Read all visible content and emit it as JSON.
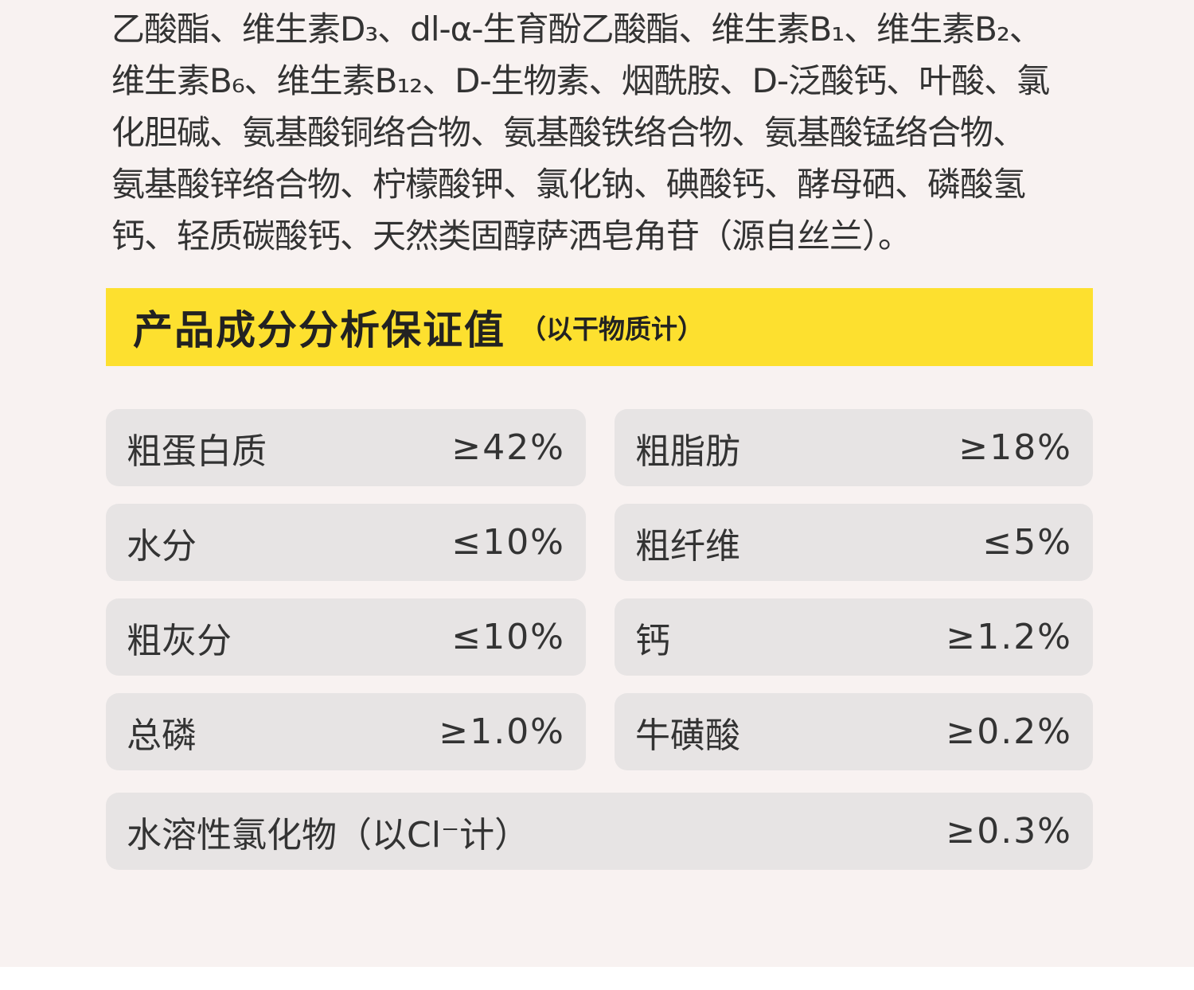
{
  "ingredients": {
    "lines": [
      "乙酸酯、维生素D₃、dl-α-生育酚乙酸酯、维生素B₁、维生素B₂、",
      "维生素B₆、维生素B₁₂、D-生物素、烟酰胺、D-泛酸钙、叶酸、氯",
      "化胆碱、氨基酸铜络合物、氨基酸铁络合物、氨基酸锰络合物、",
      "氨基酸锌络合物、柠檬酸钾、氯化钠、碘酸钙、酵母硒、磷酸氢",
      "钙、轻质碳酸钙、天然类固醇萨洒皂角苷（源自丝兰）。"
    ]
  },
  "header": {
    "title": "产品成分分析保证值",
    "subtitle": "（以干物质计）"
  },
  "table": {
    "rows": [
      {
        "name": "粗蛋白质",
        "value": "≥42%"
      },
      {
        "name": "粗脂肪",
        "value": "≥18%"
      },
      {
        "name": "水分",
        "value": "≤10%"
      },
      {
        "name": "粗纤维",
        "value": "≤5%"
      },
      {
        "name": "粗灰分",
        "value": "≤10%"
      },
      {
        "name": "钙",
        "value": "≥1.2%"
      },
      {
        "name": "总磷",
        "value": "≥1.0%"
      },
      {
        "name": "牛磺酸",
        "value": "≥0.2%"
      },
      {
        "name": "水溶性氯化物（以Cl⁻计）",
        "value": "≥0.3%"
      }
    ]
  }
}
